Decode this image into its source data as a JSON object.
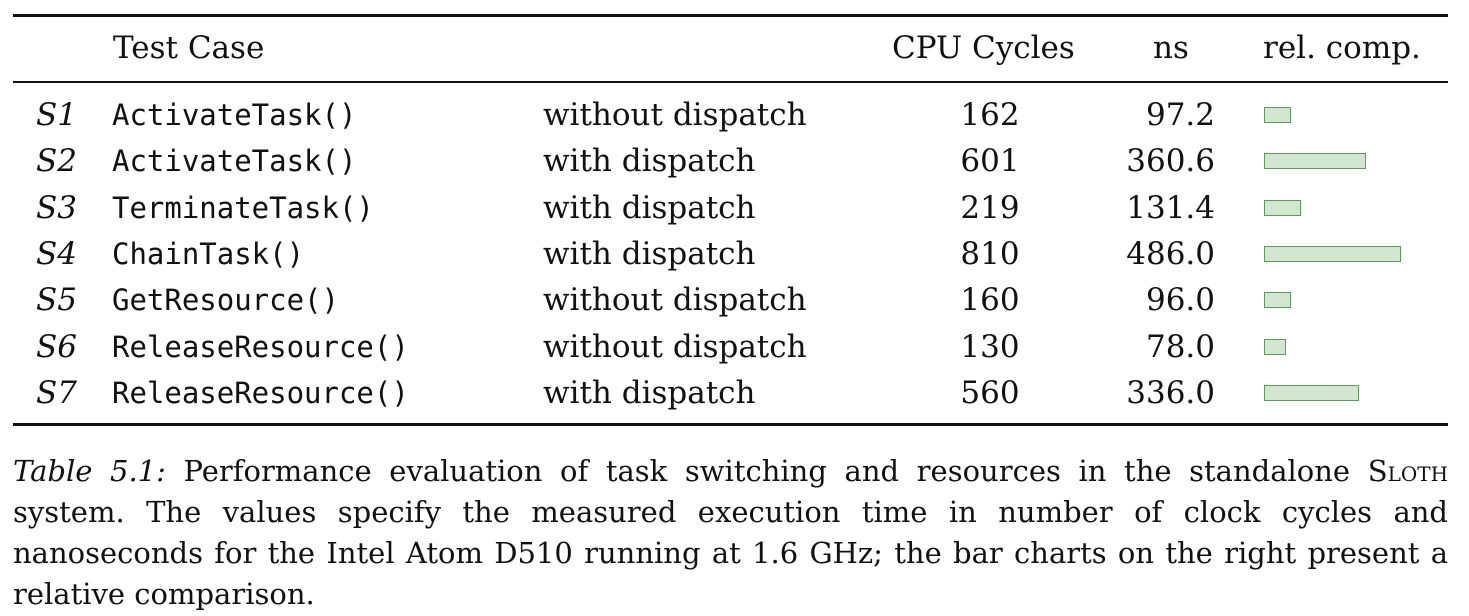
{
  "header": {
    "test_case": "Test Case",
    "cpu_cycles": "CPU Cycles",
    "ns": "ns",
    "rel_comp": "rel. comp."
  },
  "rows": [
    {
      "id": "S1",
      "func": "ActivateTask()",
      "mode": "without dispatch",
      "cycles": "162",
      "ns": "97.2",
      "rel": 162
    },
    {
      "id": "S2",
      "func": "ActivateTask()",
      "mode": "with dispatch",
      "cycles": "601",
      "ns": "360.6",
      "rel": 601
    },
    {
      "id": "S3",
      "func": "TerminateTask()",
      "mode": "with dispatch",
      "cycles": "219",
      "ns": "131.4",
      "rel": 219
    },
    {
      "id": "S4",
      "func": "ChainTask()",
      "mode": "with dispatch",
      "cycles": "810",
      "ns": "486.0",
      "rel": 810
    },
    {
      "id": "S5",
      "func": "GetResource()",
      "mode": "without dispatch",
      "cycles": "160",
      "ns": "96.0",
      "rel": 160
    },
    {
      "id": "S6",
      "func": "ReleaseResource()",
      "mode": "without dispatch",
      "cycles": "130",
      "ns": "78.0",
      "rel": 130
    },
    {
      "id": "S7",
      "func": "ReleaseResource()",
      "mode": "with dispatch",
      "cycles": "560",
      "ns": "336.0",
      "rel": 560
    }
  ],
  "caption": {
    "label": "Table 5.1:",
    "text_before": "Performance evaluation of task switching and resources in the standalone",
    "system_name": "Sloth",
    "text_after": "system. The values specify the measured execution time in number of clock cycles and nanoseconds for the Intel Atom D510 running at 1.6 GHz; the bar charts on the right present a relative comparison."
  }
}
